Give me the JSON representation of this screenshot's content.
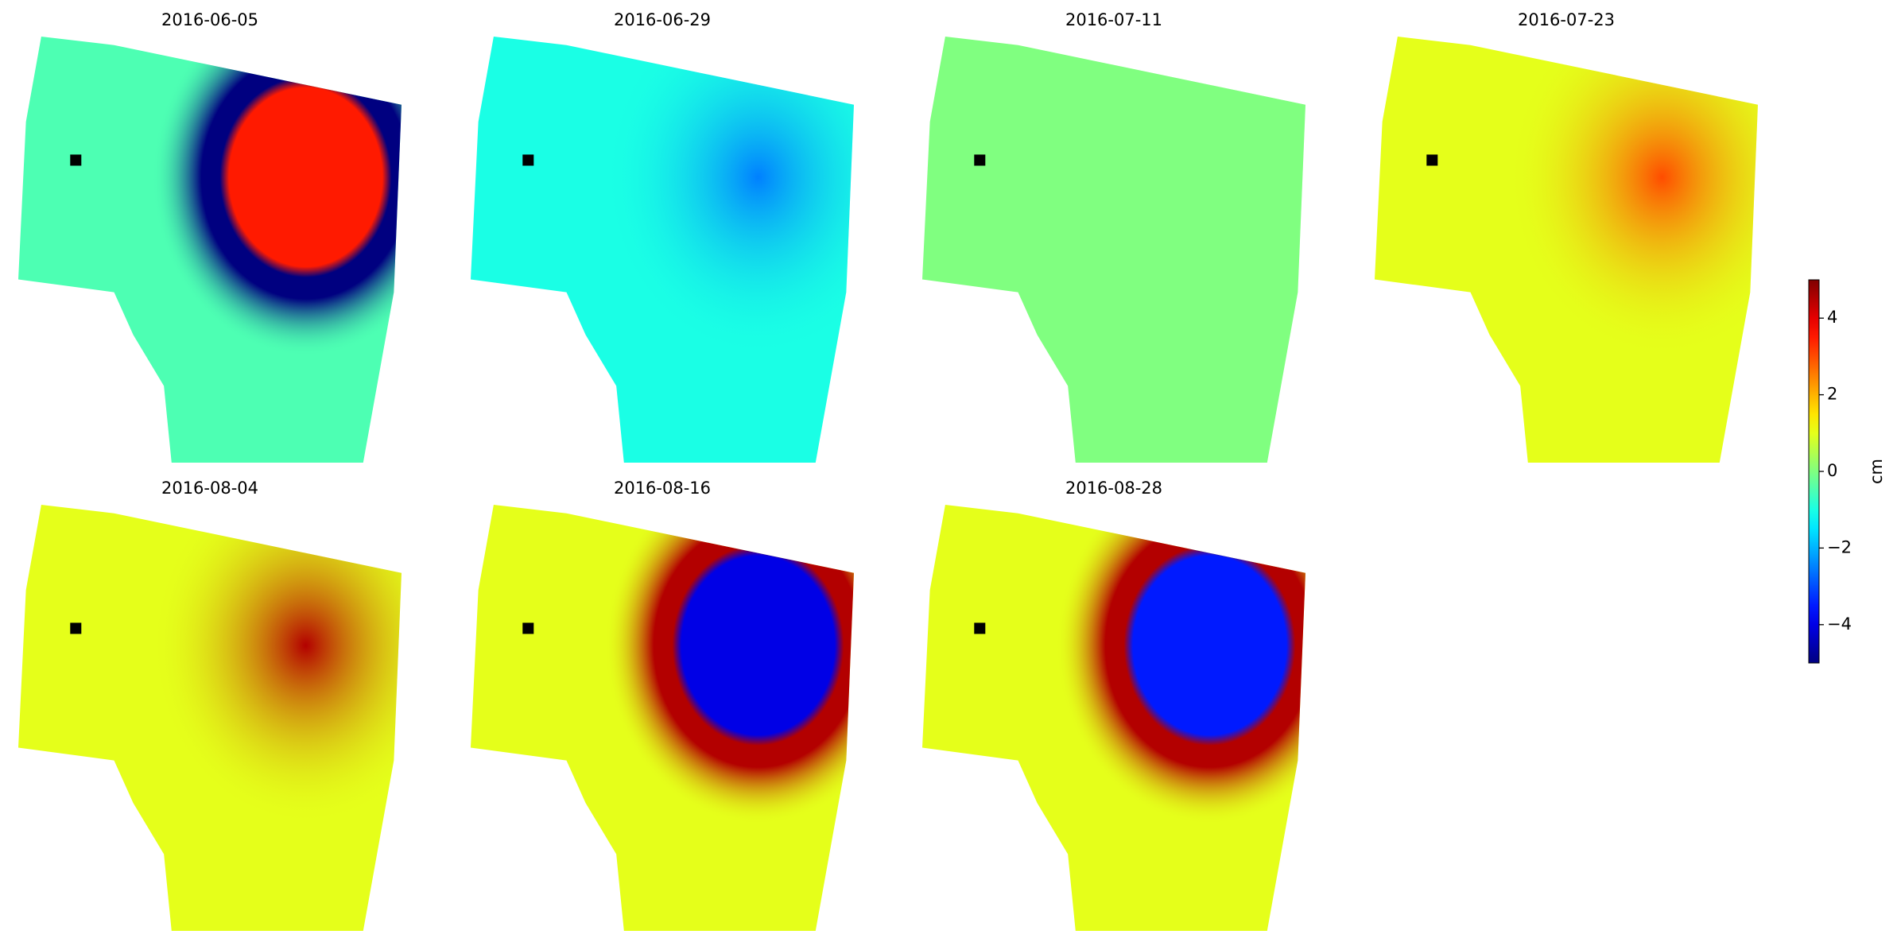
{
  "chart_data": {
    "type": "image-grid",
    "cmap": "jet",
    "clim": [
      -5,
      5
    ],
    "colorbar_label": "cm",
    "colorbar_ticks": [
      {
        "value": -4,
        "label": "−4"
      },
      {
        "value": -2,
        "label": "−2"
      },
      0,
      2,
      4
    ],
    "panels": [
      {
        "title": "2016-06-05",
        "background": -0.5,
        "peak": 3.5,
        "rim": -5
      },
      {
        "title": "2016-06-29",
        "background": -1,
        "peak": -2.5
      },
      {
        "title": "2016-07-11",
        "background": 0,
        "peak": 0
      },
      {
        "title": "2016-07-23",
        "background": 1,
        "peak": 3
      },
      {
        "title": "2016-08-04",
        "background": 1,
        "peak": 4.5
      },
      {
        "title": "2016-08-16",
        "background": 1,
        "peak": -4,
        "rim": 4.5
      },
      {
        "title": "2016-08-28",
        "background": 1,
        "peak": -3.5,
        "rim": 4.5
      }
    ]
  }
}
